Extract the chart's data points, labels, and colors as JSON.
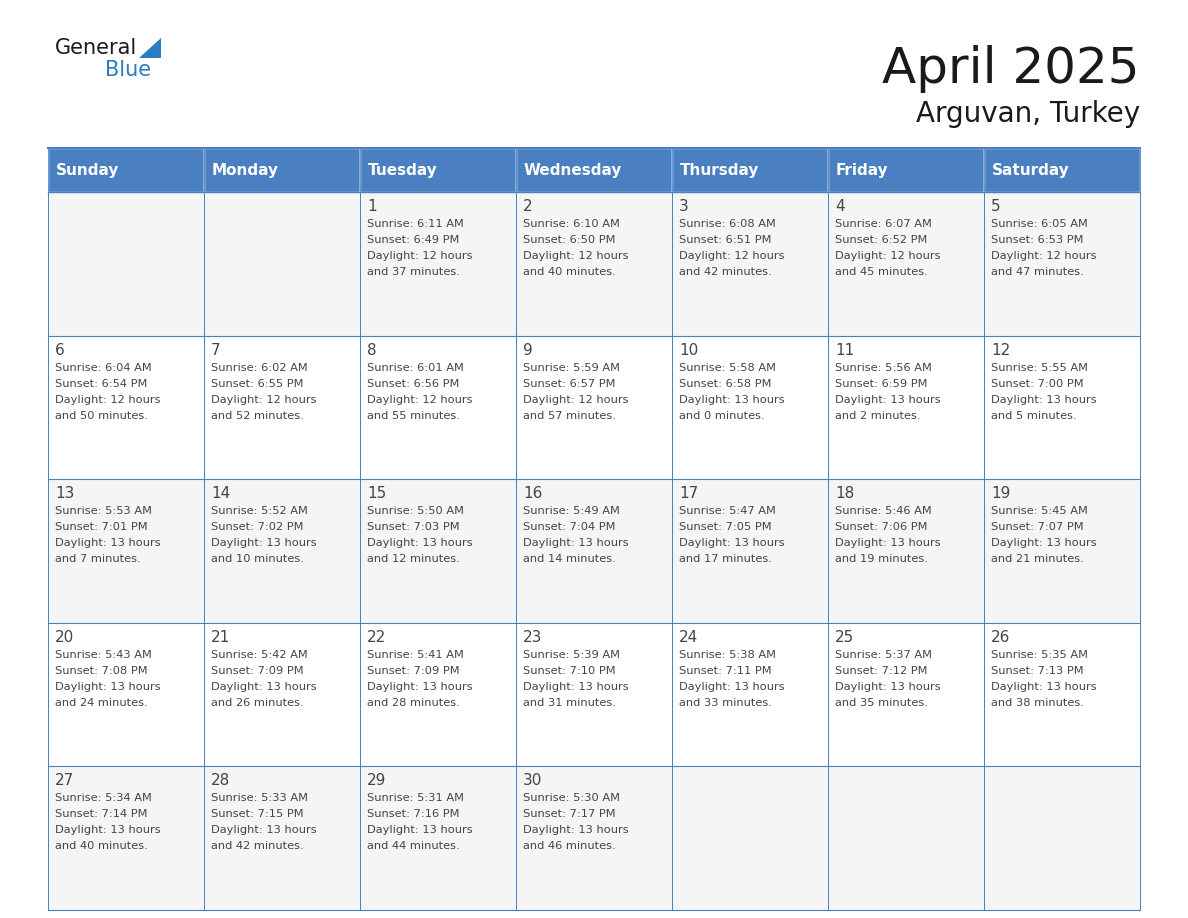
{
  "title": "April 2025",
  "subtitle": "Arguvan, Turkey",
  "header_bg": "#4a7fc1",
  "header_text_color": "#FFFFFF",
  "cell_bg_odd": "#f5f5f5",
  "cell_bg_even": "#FFFFFF",
  "border_color": "#4a7fc1",
  "day_names": [
    "Sunday",
    "Monday",
    "Tuesday",
    "Wednesday",
    "Thursday",
    "Friday",
    "Saturday"
  ],
  "title_color": "#1a1a1a",
  "subtitle_color": "#1a1a1a",
  "cell_text_color": "#444444",
  "logo_black": "#1a1a1a",
  "logo_blue": "#2B7DBF",
  "triangle_color": "#2B7DBF",
  "days": [
    {
      "day": null,
      "sunrise": null,
      "sunset": null,
      "daylight": null
    },
    {
      "day": null,
      "sunrise": null,
      "sunset": null,
      "daylight": null
    },
    {
      "day": 1,
      "sunrise": "6:11 AM",
      "sunset": "6:49 PM",
      "daylight": "12 hours\nand 37 minutes."
    },
    {
      "day": 2,
      "sunrise": "6:10 AM",
      "sunset": "6:50 PM",
      "daylight": "12 hours\nand 40 minutes."
    },
    {
      "day": 3,
      "sunrise": "6:08 AM",
      "sunset": "6:51 PM",
      "daylight": "12 hours\nand 42 minutes."
    },
    {
      "day": 4,
      "sunrise": "6:07 AM",
      "sunset": "6:52 PM",
      "daylight": "12 hours\nand 45 minutes."
    },
    {
      "day": 5,
      "sunrise": "6:05 AM",
      "sunset": "6:53 PM",
      "daylight": "12 hours\nand 47 minutes."
    },
    {
      "day": 6,
      "sunrise": "6:04 AM",
      "sunset": "6:54 PM",
      "daylight": "12 hours\nand 50 minutes."
    },
    {
      "day": 7,
      "sunrise": "6:02 AM",
      "sunset": "6:55 PM",
      "daylight": "12 hours\nand 52 minutes."
    },
    {
      "day": 8,
      "sunrise": "6:01 AM",
      "sunset": "6:56 PM",
      "daylight": "12 hours\nand 55 minutes."
    },
    {
      "day": 9,
      "sunrise": "5:59 AM",
      "sunset": "6:57 PM",
      "daylight": "12 hours\nand 57 minutes."
    },
    {
      "day": 10,
      "sunrise": "5:58 AM",
      "sunset": "6:58 PM",
      "daylight": "13 hours\nand 0 minutes."
    },
    {
      "day": 11,
      "sunrise": "5:56 AM",
      "sunset": "6:59 PM",
      "daylight": "13 hours\nand 2 minutes."
    },
    {
      "day": 12,
      "sunrise": "5:55 AM",
      "sunset": "7:00 PM",
      "daylight": "13 hours\nand 5 minutes."
    },
    {
      "day": 13,
      "sunrise": "5:53 AM",
      "sunset": "7:01 PM",
      "daylight": "13 hours\nand 7 minutes."
    },
    {
      "day": 14,
      "sunrise": "5:52 AM",
      "sunset": "7:02 PM",
      "daylight": "13 hours\nand 10 minutes."
    },
    {
      "day": 15,
      "sunrise": "5:50 AM",
      "sunset": "7:03 PM",
      "daylight": "13 hours\nand 12 minutes."
    },
    {
      "day": 16,
      "sunrise": "5:49 AM",
      "sunset": "7:04 PM",
      "daylight": "13 hours\nand 14 minutes."
    },
    {
      "day": 17,
      "sunrise": "5:47 AM",
      "sunset": "7:05 PM",
      "daylight": "13 hours\nand 17 minutes."
    },
    {
      "day": 18,
      "sunrise": "5:46 AM",
      "sunset": "7:06 PM",
      "daylight": "13 hours\nand 19 minutes."
    },
    {
      "day": 19,
      "sunrise": "5:45 AM",
      "sunset": "7:07 PM",
      "daylight": "13 hours\nand 21 minutes."
    },
    {
      "day": 20,
      "sunrise": "5:43 AM",
      "sunset": "7:08 PM",
      "daylight": "13 hours\nand 24 minutes."
    },
    {
      "day": 21,
      "sunrise": "5:42 AM",
      "sunset": "7:09 PM",
      "daylight": "13 hours\nand 26 minutes."
    },
    {
      "day": 22,
      "sunrise": "5:41 AM",
      "sunset": "7:09 PM",
      "daylight": "13 hours\nand 28 minutes."
    },
    {
      "day": 23,
      "sunrise": "5:39 AM",
      "sunset": "7:10 PM",
      "daylight": "13 hours\nand 31 minutes."
    },
    {
      "day": 24,
      "sunrise": "5:38 AM",
      "sunset": "7:11 PM",
      "daylight": "13 hours\nand 33 minutes."
    },
    {
      "day": 25,
      "sunrise": "5:37 AM",
      "sunset": "7:12 PM",
      "daylight": "13 hours\nand 35 minutes."
    },
    {
      "day": 26,
      "sunrise": "5:35 AM",
      "sunset": "7:13 PM",
      "daylight": "13 hours\nand 38 minutes."
    },
    {
      "day": 27,
      "sunrise": "5:34 AM",
      "sunset": "7:14 PM",
      "daylight": "13 hours\nand 40 minutes."
    },
    {
      "day": 28,
      "sunrise": "5:33 AM",
      "sunset": "7:15 PM",
      "daylight": "13 hours\nand 42 minutes."
    },
    {
      "day": 29,
      "sunrise": "5:31 AM",
      "sunset": "7:16 PM",
      "daylight": "13 hours\nand 44 minutes."
    },
    {
      "day": 30,
      "sunrise": "5:30 AM",
      "sunset": "7:17 PM",
      "daylight": "13 hours\nand 46 minutes."
    },
    {
      "day": null,
      "sunrise": null,
      "sunset": null,
      "daylight": null
    },
    {
      "day": null,
      "sunrise": null,
      "sunset": null,
      "daylight": null
    },
    {
      "day": null,
      "sunrise": null,
      "sunset": null,
      "daylight": null
    }
  ]
}
